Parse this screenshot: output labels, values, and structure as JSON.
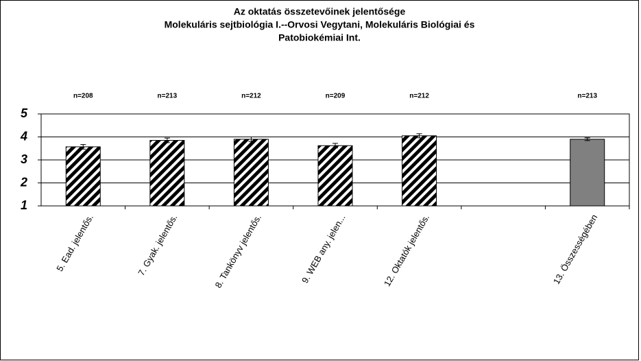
{
  "chart_data": {
    "type": "bar",
    "title": [
      "Az oktatás összetevőinek jelentősége",
      "Molekuláris sejtbiológia I.--Orvosi Vegytani, Molekuláris Biológiai és",
      "Patobiokémiai Int."
    ],
    "categories": [
      "5. Ead. jelentős.",
      "7. Gyak. jelentős.",
      "8. Tankönyv jelentős.",
      "9. WEB any. jelen...",
      "12. Oktatók jelentős.",
      null,
      "13. Összességében"
    ],
    "values": [
      3.57,
      3.85,
      3.9,
      3.62,
      4.05,
      null,
      3.9
    ],
    "errors": [
      0.1,
      0.1,
      0.1,
      0.1,
      0.09,
      null,
      0.06
    ],
    "n_labels": [
      "n=208",
      "n=213",
      "n=212",
      "n=209",
      "n=212",
      null,
      "n=213"
    ],
    "bar_styles": [
      "hatched",
      "hatched",
      "hatched",
      "hatched",
      "hatched",
      null,
      "solid"
    ],
    "color": "#808080",
    "ylim": [
      1,
      5
    ],
    "yticks": [
      1,
      2,
      3,
      4,
      5
    ],
    "grid": true
  }
}
